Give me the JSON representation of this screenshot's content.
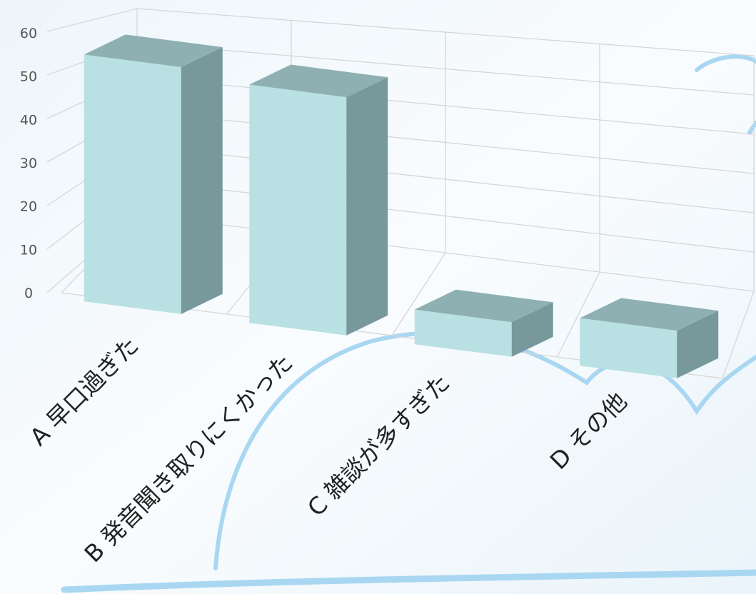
{
  "chart_data": {
    "type": "bar",
    "title": "",
    "xlabel": "",
    "ylabel": "",
    "categories": [
      "A 早口過ぎた",
      "B 発音聞き取りにくかった",
      "C 雑談が多すぎた",
      "D その他"
    ],
    "values": [
      57,
      55,
      8,
      11
    ],
    "ylim": [
      0,
      60
    ],
    "yticks": [
      0,
      10,
      20,
      30,
      40,
      50,
      60
    ],
    "grid": true,
    "legend": "none",
    "colors": {
      "bar_front": "#b9e1e3",
      "bar_top": "#8fb0b2",
      "bar_side": "#77999b",
      "grid": "#d6d6d6",
      "decoration": "#a9d7f2"
    }
  }
}
